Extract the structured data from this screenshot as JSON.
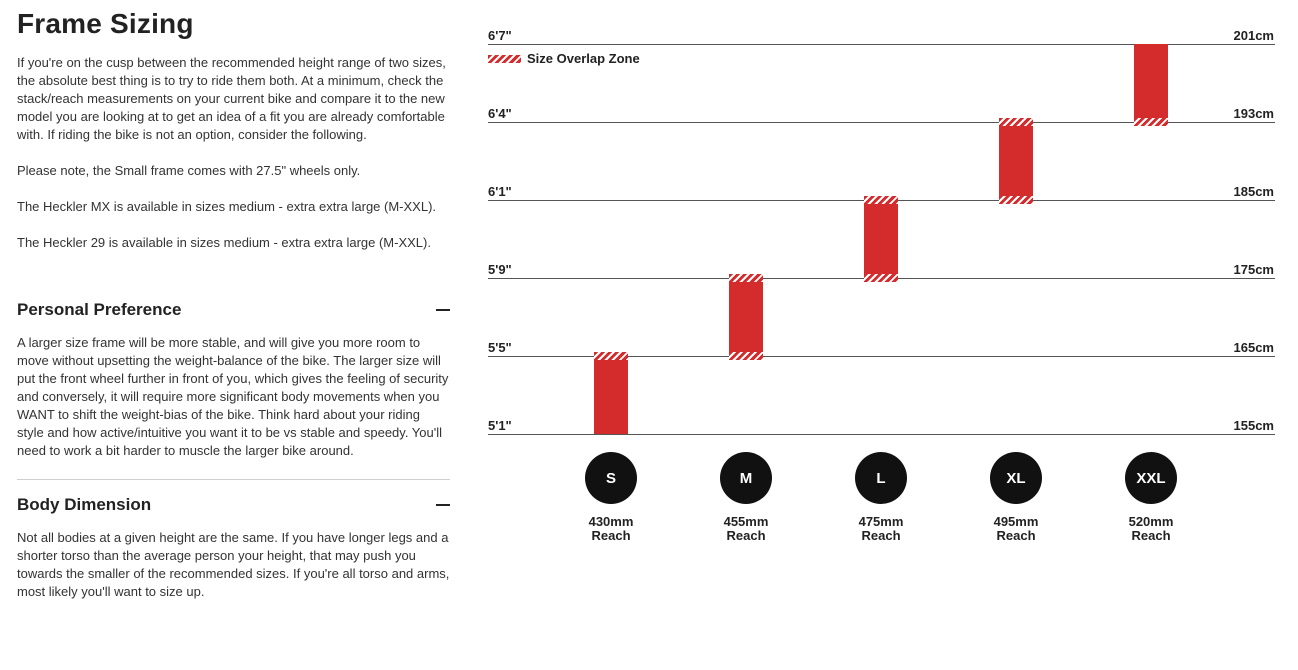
{
  "page": {
    "title": "Frame Sizing",
    "intro": [
      "If you're on the cusp between the recommended height range of two sizes, the absolute best thing is to try to ride them both. At a minimum, check the stack/reach measurements on your current bike and compare it to the new model you are looking at to get an idea of a fit you are already comfortable with. If riding the bike is not an option, consider the following.",
      "Please note, the Small frame comes with 27.5\" wheels only.",
      "The Heckler MX is available in sizes medium - extra extra large (M-XXL).",
      "The Heckler 29 is available in sizes medium - extra extra large (M-XXL)."
    ]
  },
  "sections": [
    {
      "title": "Personal Preference",
      "body": "A larger size frame will be more stable, and will give you more room to move without upsetting the weight-balance of the bike. The larger size will put the front wheel further in front of you, which gives the feeling of security and conversely, it will require more significant body movements when you WANT to shift the weight-bias of the bike. Think hard about your riding style and how active/intuitive you want it to be vs stable and speedy. You'll need to work a bit harder to muscle the larger bike around."
    },
    {
      "title": "Body Dimension",
      "body": "Not all bodies at a given height are the same. If you have longer legs and a shorter torso than the average person your height, that may push you towards the smaller of the recommended sizes. If you're all torso and arms, most likely you'll want to size up."
    }
  ],
  "chart": {
    "legend": "Size Overlap Zone",
    "overlap_color": "#d42c2c",
    "bar_color": "#d42c2c",
    "heights": [
      {
        "ft": "6'7\"",
        "cm": "201cm"
      },
      {
        "ft": "6'4\"",
        "cm": "193cm"
      },
      {
        "ft": "6'1\"",
        "cm": "185cm"
      },
      {
        "ft": "5'9\"",
        "cm": "175cm"
      },
      {
        "ft": "5'5\"",
        "cm": "165cm"
      },
      {
        "ft": "5'1\"",
        "cm": "155cm"
      }
    ],
    "sizes": [
      {
        "label": "S",
        "reach_value": "430mm",
        "reach_label": "Reach"
      },
      {
        "label": "M",
        "reach_value": "455mm",
        "reach_label": "Reach"
      },
      {
        "label": "L",
        "reach_value": "475mm",
        "reach_label": "Reach"
      },
      {
        "label": "XL",
        "reach_value": "495mm",
        "reach_label": "Reach"
      },
      {
        "label": "XXL",
        "reach_value": "520mm",
        "reach_label": "Reach"
      }
    ]
  },
  "chart_data": {
    "type": "bar",
    "categories": [
      "S",
      "M",
      "L",
      "XL",
      "XXL"
    ],
    "series": [
      {
        "values": [
          [
            155,
            165
          ],
          [
            165,
            175
          ],
          [
            175,
            185
          ],
          [
            185,
            193
          ],
          [
            193,
            201
          ]
        ]
      }
    ],
    "overlap_zones_cm": [
      [
        165,
        165
      ],
      [
        165,
        165
      ],
      [
        175,
        175
      ],
      [
        175,
        175
      ],
      [
        185,
        185
      ],
      [
        185,
        185
      ],
      [
        193,
        193
      ],
      [
        193,
        193
      ]
    ],
    "y_ticks_cm": [
      155,
      165,
      175,
      185,
      193,
      201
    ],
    "y_ticks_ft": [
      "5'1\"",
      "5'5\"",
      "5'9\"",
      "6'1\"",
      "6'4\"",
      "6'7\""
    ],
    "ylim": [
      155,
      201
    ],
    "legend": "Size Overlap Zone",
    "legend_position": "top-left",
    "grid": true
  }
}
